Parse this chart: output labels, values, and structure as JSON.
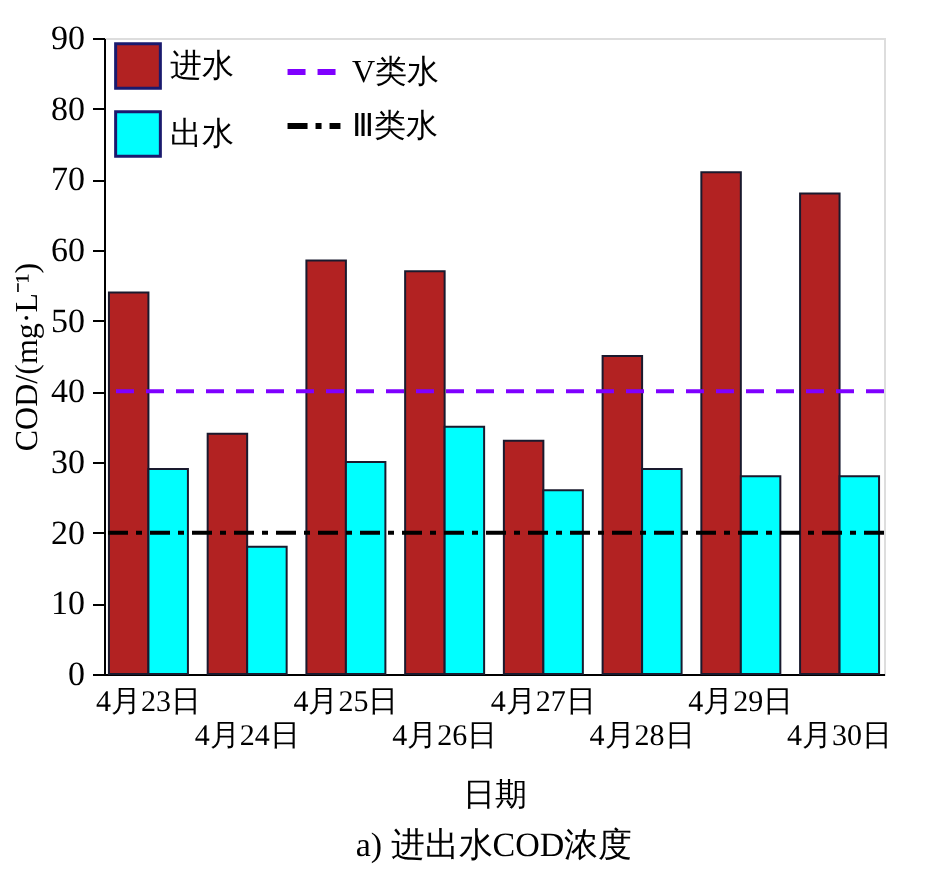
{
  "chart_data": {
    "type": "bar",
    "title": "a) 进出水COD浓度",
    "xlabel": "日期",
    "ylabel": "COD/(mg·L⁻¹)",
    "categories": [
      "4月23日",
      "4月24日",
      "4月25日",
      "4月26日",
      "4月27日",
      "4月28日",
      "4月29日",
      "4月30日"
    ],
    "series": [
      {
        "name": "进水",
        "color": "#b22222",
        "values": [
          54,
          34,
          58.5,
          57,
          33,
          45,
          71,
          68
        ]
      },
      {
        "name": "出水",
        "color": "#00ffff",
        "values": [
          29,
          18,
          30,
          35,
          26,
          29,
          28,
          28
        ]
      }
    ],
    "ref_lines": [
      {
        "axis": "y",
        "value": 40,
        "label": "V类水",
        "color": "#7f00ff",
        "line_style": "dashed"
      },
      {
        "axis": "y",
        "value": 20,
        "label": "Ⅲ类水",
        "color": "#000000",
        "line_style": "dashdot"
      }
    ],
    "ylim": [
      0,
      90
    ],
    "yticks": [
      0,
      10,
      20,
      30,
      40,
      50,
      60,
      70,
      80,
      90
    ],
    "grid": false,
    "legend": "top left"
  }
}
